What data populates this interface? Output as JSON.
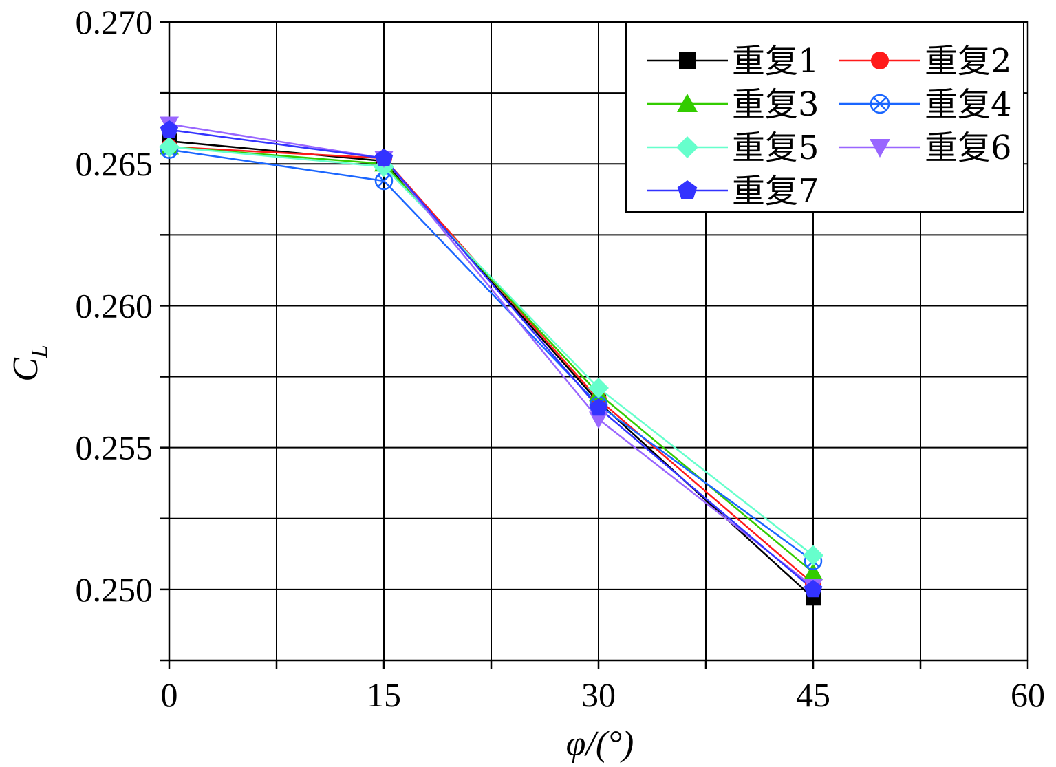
{
  "chart_data": {
    "type": "line",
    "xlabel": "φ/(°)",
    "ylabel": "C_L",
    "ylabel_main": "C",
    "ylabel_sub": "L",
    "xlim": [
      0,
      60
    ],
    "ylim": [
      0.2475,
      0.27
    ],
    "xticks": [
      0,
      15,
      30,
      45,
      60
    ],
    "xtick_labels": [
      "0",
      "15",
      "30",
      "45",
      "60"
    ],
    "yticks": [
      0.25,
      0.255,
      0.26,
      0.265,
      0.27
    ],
    "ytick_labels": [
      "0.250",
      "0.255",
      "0.260",
      "0.265",
      "0.270"
    ],
    "grid": true,
    "legend_position": "top-right",
    "x": [
      0,
      15,
      30,
      45
    ],
    "series": [
      {
        "name": "重复1",
        "color": "#000000",
        "marker": "square",
        "values": [
          0.2658,
          0.2651,
          0.2566,
          0.2497
        ]
      },
      {
        "name": "重复2",
        "color": "#ff1a1a",
        "marker": "circle",
        "values": [
          0.2656,
          0.2652,
          0.2567,
          0.2502
        ]
      },
      {
        "name": "重复3",
        "color": "#33cc00",
        "marker": "triangle-up",
        "values": [
          0.2656,
          0.265,
          0.2569,
          0.2506
        ]
      },
      {
        "name": "重复4",
        "color": "#1a66ff",
        "marker": "circle-x",
        "values": [
          0.2655,
          0.2644,
          0.2565,
          0.251
        ]
      },
      {
        "name": "重复5",
        "color": "#66ffcc",
        "marker": "diamond",
        "values": [
          0.2656,
          0.2649,
          0.2571,
          0.2512
        ]
      },
      {
        "name": "重复6",
        "color": "#9966ff",
        "marker": "triangle-down",
        "values": [
          0.2664,
          0.2652,
          0.256,
          0.2501
        ]
      },
      {
        "name": "重复7",
        "color": "#3333ff",
        "marker": "pentagon",
        "values": [
          0.2662,
          0.2652,
          0.2564,
          0.25
        ]
      }
    ]
  }
}
